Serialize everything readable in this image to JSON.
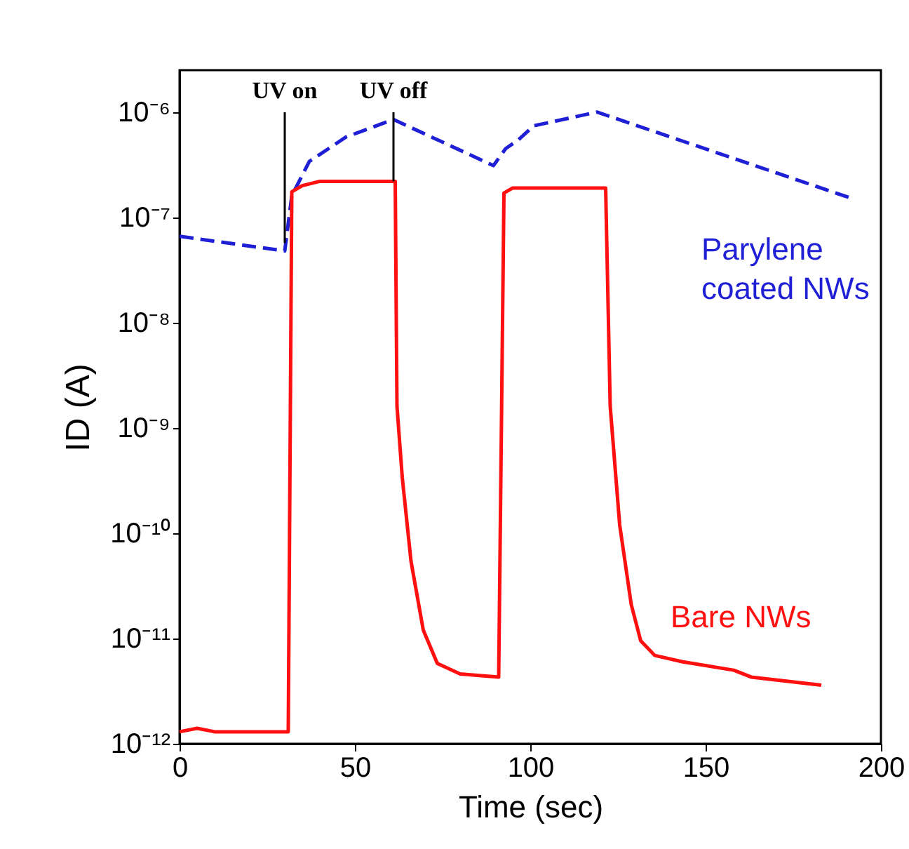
{
  "chart_data": {
    "type": "line",
    "xlabel": "Time (sec)",
    "ylabel": "ID (A)",
    "log": "y",
    "xlim": [
      0,
      200
    ],
    "xticks": [
      0,
      50,
      100,
      150,
      200
    ],
    "ylim": [
      1e-12,
      2.5e-06
    ],
    "yticks": [
      {
        "value": 1e-12,
        "label": "10⁻¹²"
      },
      {
        "value": 1e-11,
        "label": "10⁻¹¹"
      },
      {
        "value": 1e-10,
        "label": "10⁻¹⁰"
      },
      {
        "value": 1e-09,
        "label": "10⁻⁹"
      },
      {
        "value": 1e-08,
        "label": "10⁻⁸"
      },
      {
        "value": 1e-07,
        "label": "10⁻⁷"
      },
      {
        "value": 1e-06,
        "label": "10⁻⁶"
      }
    ],
    "grid": false,
    "marker": "none",
    "series": [
      {
        "name": "Parylene\ncoated NWs",
        "color": "#1f1fd6",
        "line_style": "dashed",
        "x": [
          0,
          30,
          32,
          37,
          47.5,
          61,
          89.5,
          93,
          96.5,
          101,
          119,
          192
        ],
        "values": [
          6.6e-08,
          4.8e-08,
          1.6e-07,
          3.4e-07,
          5.8e-07,
          8.5e-07,
          3.1e-07,
          4.5e-07,
          5.4e-07,
          7.4e-07,
          1e-06,
          1.5e-07
        ]
      },
      {
        "name": "Bare NWs",
        "color": "#ff1010",
        "line_style": "solid",
        "x": [
          0,
          5,
          10,
          20,
          31,
          32,
          35,
          40,
          61.5,
          62,
          63.5,
          66,
          69.5,
          73.5,
          80,
          91,
          92.5,
          95,
          121.5,
          122.8,
          125.5,
          128.8,
          131.5,
          135.5,
          143.5,
          158,
          163,
          183
        ],
        "values": [
          1.3e-12,
          1.4e-12,
          1.3e-12,
          1.3e-12,
          1.3e-12,
          1.75e-07,
          2e-07,
          2.2e-07,
          2.2e-07,
          1.6e-09,
          3.4e-10,
          5.4e-11,
          1.2e-11,
          5.8e-12,
          4.6e-12,
          4.3e-12,
          1.7e-07,
          1.9e-07,
          1.9e-07,
          1.6e-09,
          1.2e-10,
          2.1e-11,
          9.5e-12,
          6.9e-12,
          6e-12,
          5e-12,
          4.3e-12,
          3.6e-12
        ]
      }
    ],
    "annotations": [
      {
        "text": "UV on",
        "x": 30,
        "y": 5.7e-08
      },
      {
        "text": "UV off",
        "x": 61,
        "y": 2.2e-07
      }
    ]
  }
}
